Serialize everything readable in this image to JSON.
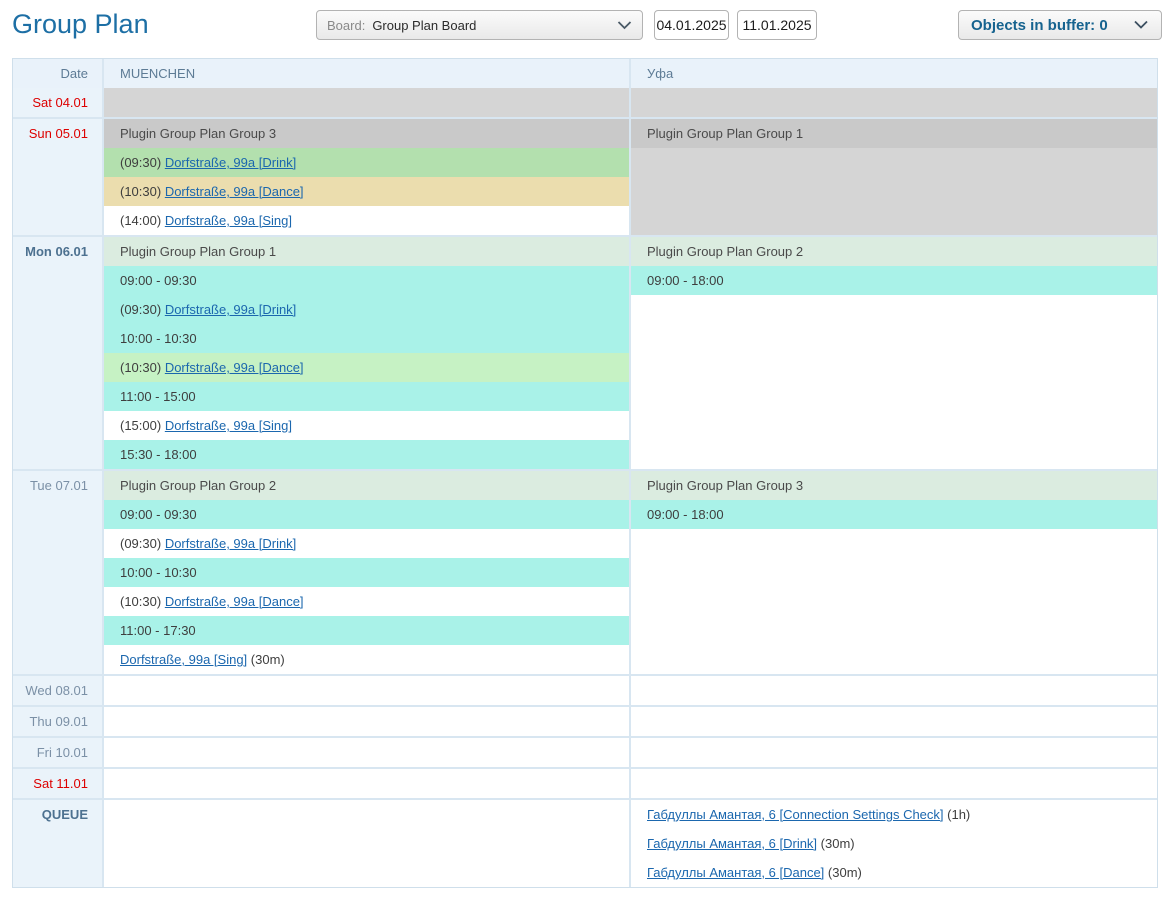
{
  "header": {
    "title": "Group Plan",
    "board_label": "Board:",
    "board_value": "Group Plan Board",
    "date_from": "04.01.2025",
    "date_to": "11.01.2025",
    "buffer_label": "Objects in buffer: 0"
  },
  "colors": {
    "accent_blue": "#1d6fa5",
    "free_slot": "#a9f2e8",
    "busy_day": "#d5d5d5",
    "busy_group_header": "#c9c9c9",
    "free_group_header": "#dbece0",
    "booked_green": "#b3e0ae",
    "booked_mint": "#c6f2c4",
    "booked_tan": "#ebddae",
    "weekend_red": "#dd0000"
  },
  "table": {
    "columns": [
      "Date",
      "MUENCHEN",
      "Уфа"
    ],
    "rows": [
      {
        "date": "Sat 04.01",
        "kind": "weekend",
        "m": [
          {
            "bg": "busy",
            "span": 1
          }
        ],
        "u": [
          {
            "bg": "busy",
            "span": 1
          }
        ]
      },
      {
        "date": "Sun 05.01",
        "kind": "weekend",
        "m": [
          {
            "bg": "gbusy",
            "text": "Plugin Group Plan Group 3"
          },
          {
            "bg": "green",
            "time": "(09:30)",
            "link": "Dorfstraße, 99a [Drink]"
          },
          {
            "bg": "tan",
            "time": "(10:30)",
            "link": "Dorfstraße, 99a [Dance]"
          },
          {
            "bg": "white",
            "time": "(14:00)",
            "link": "Dorfstraße, 99a [Sing]"
          }
        ],
        "u": [
          {
            "bg": "gbusy",
            "text": "Plugin Group Plan Group 1"
          },
          {
            "bg": "busy",
            "span": 3
          }
        ]
      },
      {
        "date": "Mon 06.01",
        "kind": "today",
        "m": [
          {
            "bg": "gfree",
            "text": "Plugin Group Plan Group 1"
          },
          {
            "bg": "cyan",
            "text": "09:00 - 09:30"
          },
          {
            "bg": "cyan",
            "time": "(09:30)",
            "link": "Dorfstraße, 99a [Drink]"
          },
          {
            "bg": "cyan",
            "text": "10:00 - 10:30"
          },
          {
            "bg": "mint",
            "time": "(10:30)",
            "link": "Dorfstraße, 99a [Dance]"
          },
          {
            "bg": "cyan",
            "text": "11:00 - 15:00"
          },
          {
            "bg": "white",
            "time": "(15:00)",
            "link": "Dorfstraße, 99a [Sing]"
          },
          {
            "bg": "cyan",
            "text": "15:30 - 18:00"
          }
        ],
        "u": [
          {
            "bg": "gfree",
            "text": "Plugin Group Plan Group 2"
          },
          {
            "bg": "cyan",
            "text": "09:00 - 18:00"
          },
          {
            "bg": "white",
            "span": 6
          }
        ]
      },
      {
        "date": "Tue 07.01",
        "kind": "normal",
        "m": [
          {
            "bg": "gfree",
            "text": "Plugin Group Plan Group 2"
          },
          {
            "bg": "cyan",
            "text": "09:00 - 09:30"
          },
          {
            "bg": "white",
            "time": "(09:30)",
            "link": "Dorfstraße, 99a [Drink]"
          },
          {
            "bg": "cyan",
            "text": "10:00 - 10:30"
          },
          {
            "bg": "white",
            "time": "(10:30)",
            "link": "Dorfstraße, 99a [Dance]"
          },
          {
            "bg": "cyan",
            "text": "11:00 - 17:30"
          },
          {
            "bg": "white",
            "link": "Dorfstraße, 99a [Sing]",
            "suffix": " (30m)"
          }
        ],
        "u": [
          {
            "bg": "gfree",
            "text": "Plugin Group Plan Group 3"
          },
          {
            "bg": "cyan",
            "text": "09:00 - 18:00"
          },
          {
            "bg": "white",
            "span": 5
          }
        ]
      },
      {
        "date": "Wed 08.01",
        "kind": "normal",
        "m": [
          {
            "bg": "white",
            "span": 1
          }
        ],
        "u": [
          {
            "bg": "white",
            "span": 1
          }
        ]
      },
      {
        "date": "Thu 09.01",
        "kind": "normal",
        "m": [
          {
            "bg": "white",
            "span": 1
          }
        ],
        "u": [
          {
            "bg": "white",
            "span": 1
          }
        ]
      },
      {
        "date": "Fri 10.01",
        "kind": "normal",
        "m": [
          {
            "bg": "white",
            "span": 1
          }
        ],
        "u": [
          {
            "bg": "white",
            "span": 1
          }
        ]
      },
      {
        "date": "Sat 11.01",
        "kind": "weekend",
        "m": [
          {
            "bg": "white",
            "span": 1
          }
        ],
        "u": [
          {
            "bg": "white",
            "span": 1
          }
        ]
      },
      {
        "date": "QUEUE",
        "kind": "queue",
        "m": [
          {
            "bg": "white",
            "span": 3
          }
        ],
        "u": [
          {
            "bg": "white",
            "link": "Габдуллы Амантая, 6 [Connection Settings Check]",
            "suffix": " (1h)"
          },
          {
            "bg": "white",
            "link": "Габдуллы Амантая, 6 [Drink]",
            "suffix": " (30m)"
          },
          {
            "bg": "white",
            "link": "Габдуллы Амантая, 6 [Dance]",
            "suffix": " (30m)"
          }
        ]
      }
    ]
  }
}
